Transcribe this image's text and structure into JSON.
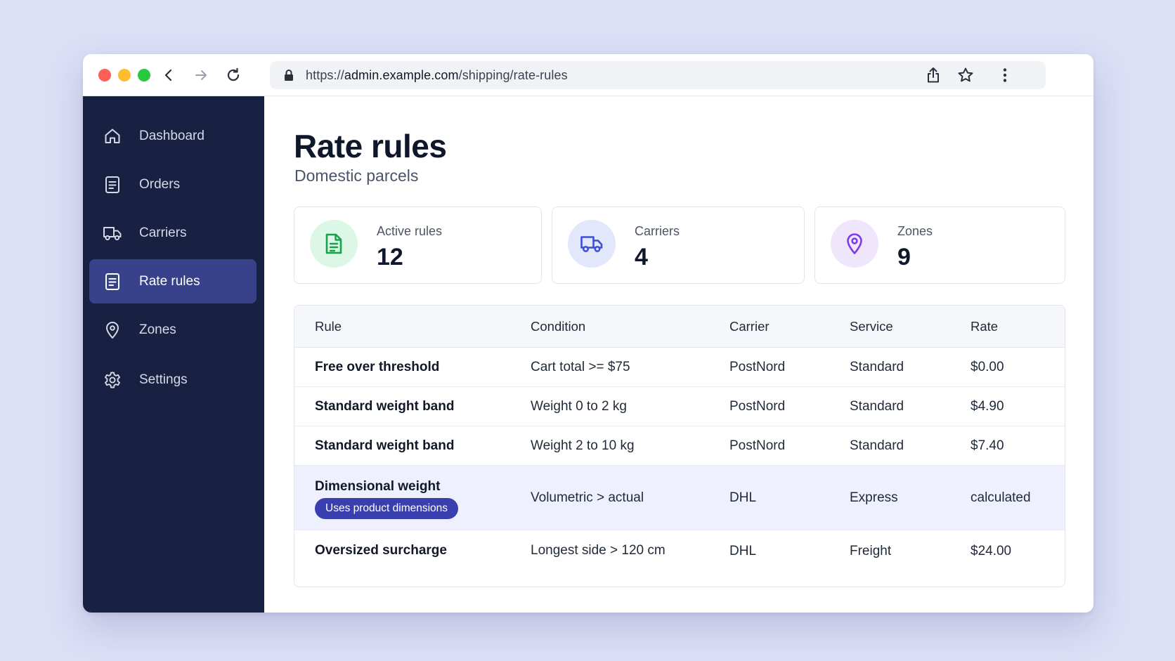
{
  "browser": {
    "url_scheme": "https://",
    "url_host": "admin.example.com",
    "url_path": "/shipping/rate-rules"
  },
  "sidebar": {
    "items": [
      {
        "label": "Dashboard",
        "icon": "home-icon",
        "active": false
      },
      {
        "label": "Orders",
        "icon": "document-icon",
        "active": false
      },
      {
        "label": "Carriers",
        "icon": "truck-icon",
        "active": false
      },
      {
        "label": "Rate rules",
        "icon": "document-icon",
        "active": true
      },
      {
        "label": "Zones",
        "icon": "map-pin-icon",
        "active": false
      },
      {
        "label": "Settings",
        "icon": "gear-icon",
        "active": false
      }
    ]
  },
  "page": {
    "title": "Rate rules",
    "subtitle": "Domestic parcels"
  },
  "stats": [
    {
      "label": "Active rules",
      "value": "12",
      "icon": "document-icon",
      "color": "#16a34a"
    },
    {
      "label": "Carriers",
      "value": "4",
      "icon": "truck-icon",
      "color": "#3b4fd8"
    },
    {
      "label": "Zones",
      "value": "9",
      "icon": "map-pin-icon",
      "color": "#7c3aed"
    }
  ],
  "table": {
    "headers": [
      "Rule",
      "Condition",
      "Carrier",
      "Service",
      "Rate"
    ],
    "rows": [
      {
        "rule": "Free over threshold",
        "condition": "Cart total >= $75",
        "carrier": "PostNord",
        "service": "Standard",
        "rate": "$0.00"
      },
      {
        "rule": "Standard weight band",
        "condition": "Weight 0 to 2 kg",
        "carrier": "PostNord",
        "service": "Standard",
        "rate": "$4.90"
      },
      {
        "rule": "Standard weight band",
        "condition": "Weight 2 to 10 kg",
        "carrier": "PostNord",
        "service": "Standard",
        "rate": "$7.40"
      },
      {
        "rule": "Dimensional weight",
        "badge": "Uses product dimensions",
        "condition": "Volumetric > actual",
        "carrier": "DHL",
        "service": "Express",
        "rate": "calculated",
        "highlighted": true
      },
      {
        "rule": "Oversized surcharge",
        "condition": "Longest side > 120 cm",
        "carrier": "DHL",
        "service": "Freight",
        "rate": "$24.00"
      }
    ]
  },
  "colors": {
    "sidebar_bg": "#182141",
    "sidebar_active": "#38428a",
    "badge": "#3a3fb0",
    "highlight_row": "#eef0fd",
    "page_bg": "#dcdff6"
  }
}
